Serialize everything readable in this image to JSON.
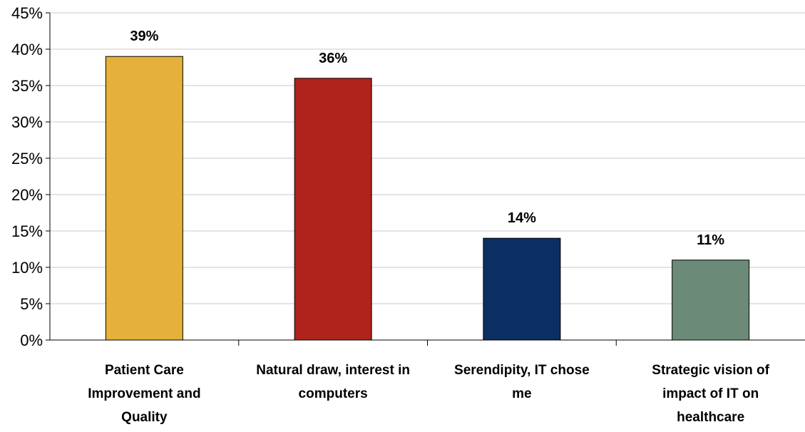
{
  "chart_data": {
    "type": "bar",
    "title": "",
    "xlabel": "",
    "ylabel": "",
    "categories": [
      [
        "Patient Care",
        "Improvement and",
        "Quality"
      ],
      [
        "Natural draw, interest in",
        "computers"
      ],
      [
        "Serendipity, IT chose",
        "me"
      ],
      [
        "Strategic vision of",
        "impact of IT on",
        "healthcare"
      ]
    ],
    "values": [
      39,
      36,
      14,
      11
    ],
    "data_labels": [
      "39%",
      "36%",
      "14%",
      "11%"
    ],
    "colors": [
      "#E5B13B",
      "#B0231C",
      "#0B2E63",
      "#6B8A78"
    ],
    "ylim": [
      0,
      45
    ],
    "yticks": [
      0,
      5,
      10,
      15,
      20,
      25,
      30,
      35,
      40,
      45
    ],
    "ytick_labels": [
      "0%",
      "5%",
      "10%",
      "15%",
      "20%",
      "25%",
      "30%",
      "35%",
      "40%",
      "45%"
    ],
    "grid": true,
    "grid_color": "#DCDCDC",
    "legend": "none"
  }
}
